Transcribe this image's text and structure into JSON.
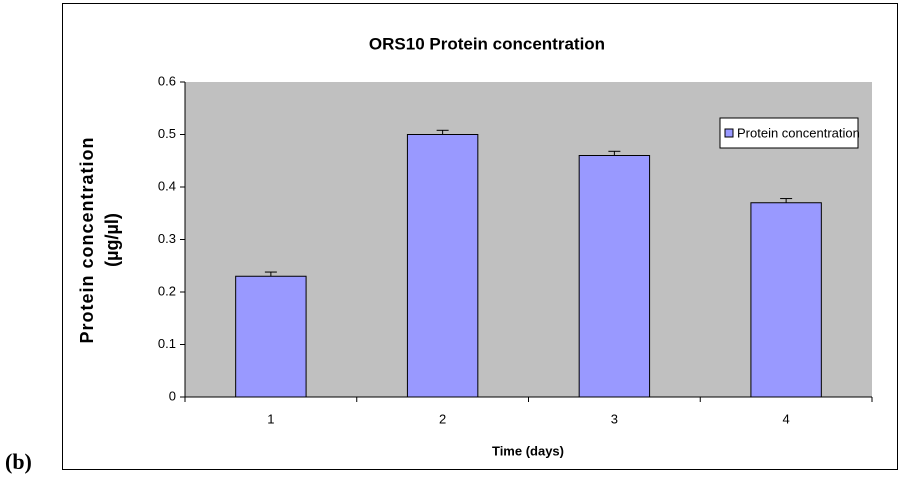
{
  "chart_data": {
    "type": "bar",
    "title": "ORS10 Protein concentration",
    "panel_label": "(b)",
    "x_label": "Time (days)",
    "y_label": [
      "Protein concentration",
      "(µg/µl)"
    ],
    "categories": [
      "1",
      "2",
      "3",
      "4"
    ],
    "series": [
      {
        "name": "Protein concentration",
        "color": "#9999ff",
        "values": [
          0.23,
          0.5,
          0.46,
          0.37
        ],
        "errors": [
          0.008,
          0.008,
          0.008,
          0.008
        ]
      }
    ],
    "ylim": [
      0,
      0.6
    ],
    "yticks": [
      0,
      0.1,
      0.2,
      0.3,
      0.4,
      0.5,
      0.6
    ],
    "grid": false,
    "legend": "upper right",
    "plot_background": "#c0c0c0"
  }
}
